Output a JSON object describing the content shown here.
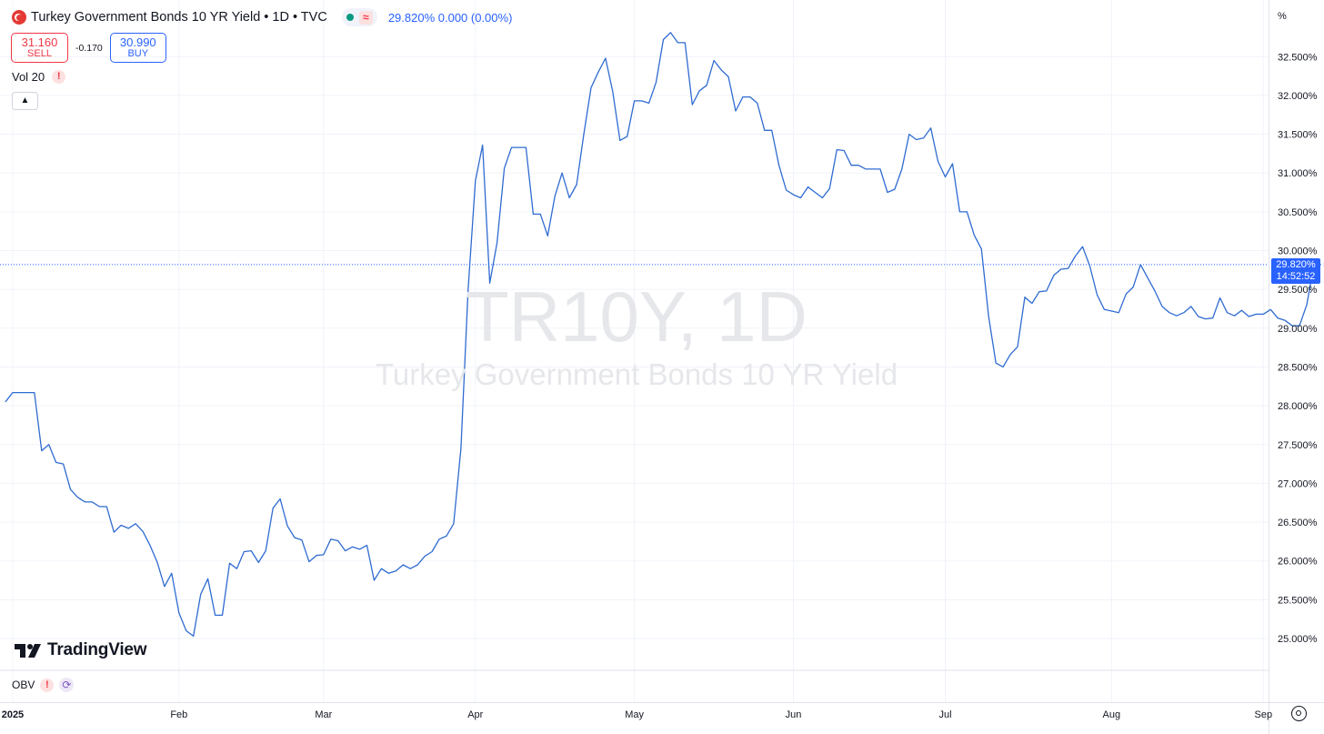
{
  "legend": {
    "title": "Turkey Government Bonds 10 YR Yield • 1D • TVC",
    "values": "29.820% 0.000 (0.00%)"
  },
  "trade": {
    "sell_price": "31.160",
    "sell_label": "SELL",
    "spread": "-0.170",
    "buy_price": "30.990",
    "buy_label": "BUY"
  },
  "indicators": {
    "vol_label": "Vol 20",
    "obv_label": "OBV"
  },
  "watermark": {
    "symbol": "TR10Y, 1D",
    "description": "Turkey Government Bonds 10 YR Yield"
  },
  "logo_text": "TradingView",
  "price_scale": {
    "unit": "%",
    "last_price": "29.820%",
    "countdown": "14:52:52"
  },
  "colors": {
    "line": "#2f6bd1",
    "accent": "#2962ff",
    "sell": "#f23645",
    "grid": "#f0f3fa"
  },
  "chart_data": {
    "type": "line",
    "y_ticks": [
      "25.000%",
      "25.500%",
      "26.000%",
      "26.500%",
      "27.000%",
      "27.500%",
      "28.000%",
      "28.500%",
      "29.000%",
      "29.500%",
      "30.000%",
      "30.500%",
      "31.000%",
      "31.500%",
      "32.000%",
      "32.500%"
    ],
    "y_tick_values": [
      25.0,
      25.5,
      26.0,
      26.5,
      27.0,
      27.5,
      28.0,
      28.5,
      29.0,
      29.5,
      30.0,
      30.5,
      31.0,
      31.5,
      32.0,
      32.5
    ],
    "x_ticks": [
      {
        "label": "2025",
        "date": "2025-01-01",
        "bold": true
      },
      {
        "label": "Feb",
        "date": "2025-02-01"
      },
      {
        "label": "Mar",
        "date": "2025-03-01"
      },
      {
        "label": "Apr",
        "date": "2025-04-01"
      },
      {
        "label": "May",
        "date": "2025-05-01"
      },
      {
        "label": "Jun",
        "date": "2025-06-01"
      },
      {
        "label": "Jul",
        "date": "2025-07-01"
      },
      {
        "label": "Aug",
        "date": "2025-08-01"
      },
      {
        "label": "Sep",
        "date": "2025-09-01"
      }
    ],
    "ylim": [
      24.6,
      33.0
    ],
    "last_value": 29.82,
    "series": [
      {
        "points": [
          [
            "2024-12-31",
            28.05
          ],
          [
            "2025-01-01",
            28.17
          ],
          [
            "2025-01-02",
            28.17
          ],
          [
            "2025-01-03",
            28.17
          ],
          [
            "2025-01-06",
            28.17
          ],
          [
            "2025-01-07",
            27.42
          ],
          [
            "2025-01-08",
            27.5
          ],
          [
            "2025-01-09",
            27.27
          ],
          [
            "2025-01-10",
            27.25
          ],
          [
            "2025-01-13",
            26.92
          ],
          [
            "2025-01-14",
            26.82
          ],
          [
            "2025-01-15",
            26.76
          ],
          [
            "2025-01-16",
            26.76
          ],
          [
            "2025-01-17",
            26.7
          ],
          [
            "2025-01-20",
            26.7
          ],
          [
            "2025-01-21",
            26.37
          ],
          [
            "2025-01-22",
            26.46
          ],
          [
            "2025-01-23",
            26.42
          ],
          [
            "2025-01-24",
            26.48
          ],
          [
            "2025-01-27",
            26.38
          ],
          [
            "2025-01-28",
            26.2
          ],
          [
            "2025-01-29",
            25.98
          ],
          [
            "2025-01-30",
            25.67
          ],
          [
            "2025-01-31",
            25.84
          ],
          [
            "2025-02-03",
            25.33
          ],
          [
            "2025-02-04",
            25.1
          ],
          [
            "2025-02-05",
            25.03
          ],
          [
            "2025-02-06",
            25.57
          ],
          [
            "2025-02-07",
            25.77
          ],
          [
            "2025-02-10",
            25.3
          ],
          [
            "2025-02-11",
            25.3
          ],
          [
            "2025-02-12",
            25.97
          ],
          [
            "2025-02-13",
            25.9
          ],
          [
            "2025-02-14",
            26.12
          ],
          [
            "2025-02-17",
            26.13
          ],
          [
            "2025-02-18",
            25.98
          ],
          [
            "2025-02-19",
            26.13
          ],
          [
            "2025-02-20",
            26.68
          ],
          [
            "2025-02-21",
            26.8
          ],
          [
            "2025-02-24",
            26.45
          ],
          [
            "2025-02-25",
            26.3
          ],
          [
            "2025-02-26",
            26.27
          ],
          [
            "2025-02-27",
            25.99
          ],
          [
            "2025-02-28",
            26.07
          ],
          [
            "2025-03-03",
            26.08
          ],
          [
            "2025-03-04",
            26.28
          ],
          [
            "2025-03-05",
            26.26
          ],
          [
            "2025-03-06",
            26.13
          ],
          [
            "2025-03-07",
            26.18
          ],
          [
            "2025-03-10",
            26.15
          ],
          [
            "2025-03-11",
            26.2
          ],
          [
            "2025-03-12",
            25.75
          ],
          [
            "2025-03-13",
            25.9
          ],
          [
            "2025-03-14",
            25.84
          ],
          [
            "2025-03-17",
            25.87
          ],
          [
            "2025-03-18",
            25.95
          ],
          [
            "2025-03-19",
            25.9
          ],
          [
            "2025-03-20",
            25.95
          ],
          [
            "2025-03-21",
            26.06
          ],
          [
            "2025-03-24",
            26.12
          ],
          [
            "2025-03-25",
            26.28
          ],
          [
            "2025-03-26",
            26.32
          ],
          [
            "2025-03-27",
            26.48
          ],
          [
            "2025-03-28",
            27.45
          ],
          [
            "2025-03-31",
            29.5
          ],
          [
            "2025-04-01",
            30.9
          ],
          [
            "2025-04-02",
            31.36
          ],
          [
            "2025-04-03",
            29.58
          ],
          [
            "2025-04-04",
            30.1
          ],
          [
            "2025-04-07",
            31.06
          ],
          [
            "2025-04-08",
            31.33
          ],
          [
            "2025-04-09",
            31.33
          ],
          [
            "2025-04-10",
            31.33
          ],
          [
            "2025-04-11",
            30.47
          ],
          [
            "2025-04-14",
            30.47
          ],
          [
            "2025-04-15",
            30.19
          ],
          [
            "2025-04-16",
            30.7
          ],
          [
            "2025-04-17",
            31.0
          ],
          [
            "2025-04-18",
            30.68
          ],
          [
            "2025-04-21",
            30.85
          ],
          [
            "2025-04-22",
            31.5
          ],
          [
            "2025-04-23",
            32.1
          ],
          [
            "2025-04-24",
            32.3
          ],
          [
            "2025-04-25",
            32.48
          ],
          [
            "2025-04-28",
            32.05
          ],
          [
            "2025-04-29",
            31.42
          ],
          [
            "2025-04-30",
            31.47
          ],
          [
            "2025-05-01",
            31.93
          ],
          [
            "2025-05-02",
            31.93
          ],
          [
            "2025-05-05",
            31.9
          ],
          [
            "2025-05-06",
            32.17
          ],
          [
            "2025-05-07",
            32.72
          ],
          [
            "2025-05-08",
            32.81
          ],
          [
            "2025-05-09",
            32.68
          ],
          [
            "2025-05-12",
            32.68
          ],
          [
            "2025-05-13",
            31.88
          ],
          [
            "2025-05-14",
            32.06
          ],
          [
            "2025-05-15",
            32.13
          ],
          [
            "2025-05-16",
            32.45
          ],
          [
            "2025-05-19",
            32.33
          ],
          [
            "2025-05-20",
            32.24
          ],
          [
            "2025-05-21",
            31.8
          ],
          [
            "2025-05-22",
            31.98
          ],
          [
            "2025-05-23",
            31.98
          ],
          [
            "2025-05-26",
            31.9
          ],
          [
            "2025-05-27",
            31.55
          ],
          [
            "2025-05-28",
            31.55
          ],
          [
            "2025-05-29",
            31.1
          ],
          [
            "2025-05-30",
            30.78
          ],
          [
            "2025-06-02",
            30.72
          ],
          [
            "2025-06-03",
            30.68
          ],
          [
            "2025-06-04",
            30.82
          ],
          [
            "2025-06-05",
            30.75
          ],
          [
            "2025-06-06",
            30.68
          ],
          [
            "2025-06-09",
            30.8
          ],
          [
            "2025-06-10",
            31.3
          ],
          [
            "2025-06-11",
            31.29
          ],
          [
            "2025-06-12",
            31.1
          ],
          [
            "2025-06-13",
            31.1
          ],
          [
            "2025-06-16",
            31.05
          ],
          [
            "2025-06-17",
            31.05
          ],
          [
            "2025-06-18",
            31.05
          ],
          [
            "2025-06-19",
            30.75
          ],
          [
            "2025-06-20",
            30.79
          ],
          [
            "2025-06-23",
            31.05
          ],
          [
            "2025-06-24",
            31.5
          ],
          [
            "2025-06-25",
            31.43
          ],
          [
            "2025-06-26",
            31.45
          ],
          [
            "2025-06-27",
            31.58
          ],
          [
            "2025-06-30",
            31.15
          ],
          [
            "2025-07-01",
            30.95
          ],
          [
            "2025-07-02",
            31.12
          ],
          [
            "2025-07-03",
            30.5
          ],
          [
            "2025-07-04",
            30.5
          ],
          [
            "2025-07-07",
            30.2
          ],
          [
            "2025-07-08",
            30.02
          ],
          [
            "2025-07-09",
            29.15
          ],
          [
            "2025-07-10",
            28.55
          ],
          [
            "2025-07-11",
            28.5
          ],
          [
            "2025-07-14",
            28.66
          ],
          [
            "2025-07-15",
            28.76
          ],
          [
            "2025-07-16",
            29.4
          ],
          [
            "2025-07-17",
            29.32
          ],
          [
            "2025-07-18",
            29.47
          ],
          [
            "2025-07-21",
            29.48
          ],
          [
            "2025-07-22",
            29.68
          ],
          [
            "2025-07-23",
            29.76
          ],
          [
            "2025-07-24",
            29.77
          ],
          [
            "2025-07-25",
            29.93
          ],
          [
            "2025-07-28",
            30.05
          ],
          [
            "2025-07-29",
            29.8
          ],
          [
            "2025-07-30",
            29.43
          ],
          [
            "2025-07-31",
            29.24
          ],
          [
            "2025-08-01",
            29.22
          ],
          [
            "2025-08-04",
            29.2
          ],
          [
            "2025-08-05",
            29.44
          ],
          [
            "2025-08-06",
            29.53
          ],
          [
            "2025-08-07",
            29.82
          ],
          [
            "2025-08-08",
            29.65
          ],
          [
            "2025-08-11",
            29.48
          ],
          [
            "2025-08-12",
            29.28
          ],
          [
            "2025-08-13",
            29.2
          ],
          [
            "2025-08-14",
            29.16
          ],
          [
            "2025-08-15",
            29.2
          ],
          [
            "2025-08-18",
            29.28
          ],
          [
            "2025-08-19",
            29.15
          ],
          [
            "2025-08-20",
            29.12
          ],
          [
            "2025-08-21",
            29.13
          ],
          [
            "2025-08-22",
            29.39
          ],
          [
            "2025-08-25",
            29.2
          ],
          [
            "2025-08-26",
            29.16
          ],
          [
            "2025-08-27",
            29.23
          ],
          [
            "2025-08-28",
            29.15
          ],
          [
            "2025-08-29",
            29.18
          ],
          [
            "2025-09-01",
            29.18
          ],
          [
            "2025-09-02",
            29.24
          ],
          [
            "2025-09-03",
            29.13
          ],
          [
            "2025-09-04",
            29.1
          ],
          [
            "2025-09-05",
            29.03
          ],
          [
            "2025-09-08",
            29.03
          ],
          [
            "2025-09-09",
            29.3
          ],
          [
            "2025-09-10",
            29.82
          ],
          [
            "2025-09-11",
            29.82
          ]
        ]
      }
    ]
  }
}
